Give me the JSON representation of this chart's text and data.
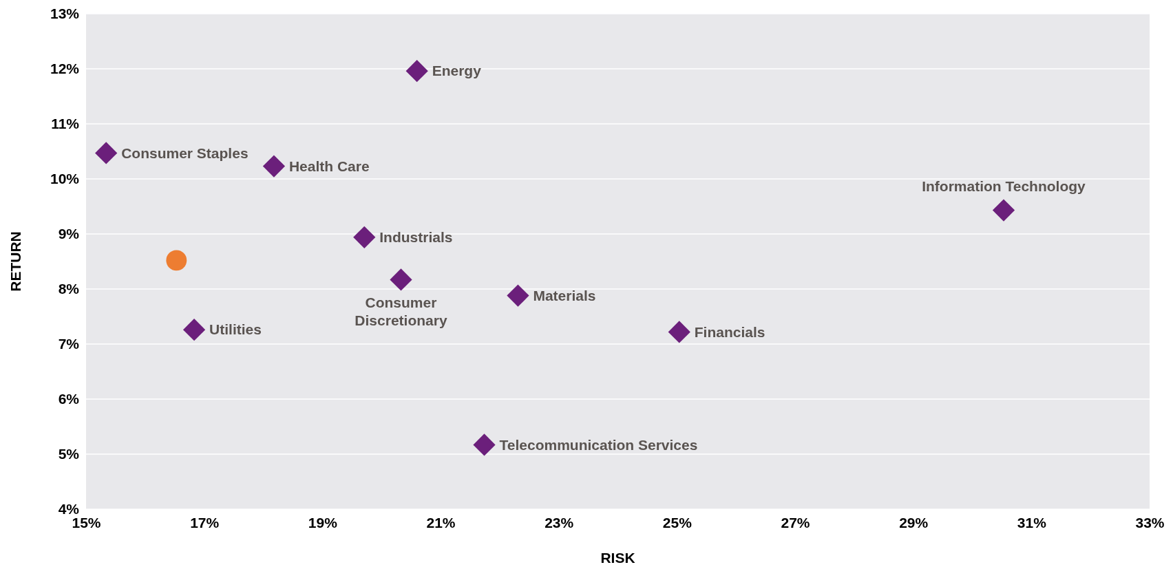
{
  "chart_data": {
    "type": "scatter",
    "xlabel": "RISK",
    "ylabel": "RETURN",
    "xlim": [
      15,
      33
    ],
    "ylim": [
      4,
      13
    ],
    "xticks": [
      {
        "value": 15,
        "label": "15%"
      },
      {
        "value": 17,
        "label": "17%"
      },
      {
        "value": 19,
        "label": "19%"
      },
      {
        "value": 21,
        "label": "21%"
      },
      {
        "value": 23,
        "label": "23%"
      },
      {
        "value": 25,
        "label": "25%"
      },
      {
        "value": 27,
        "label": "27%"
      },
      {
        "value": 29,
        "label": "29%"
      },
      {
        "value": 31,
        "label": "31%"
      },
      {
        "value": 33,
        "label": "33%"
      }
    ],
    "yticks": [
      {
        "value": 4,
        "label": "4%"
      },
      {
        "value": 5,
        "label": "5%"
      },
      {
        "value": 6,
        "label": "6%"
      },
      {
        "value": 7,
        "label": "7%"
      },
      {
        "value": 8,
        "label": "8%"
      },
      {
        "value": 9,
        "label": "9%"
      },
      {
        "value": 10,
        "label": "10%"
      },
      {
        "value": 11,
        "label": "11%"
      },
      {
        "value": 12,
        "label": "12%"
      },
      {
        "value": 13,
        "label": "13%"
      }
    ],
    "grid": "y",
    "series": [
      {
        "color": "#6b1f7b",
        "marker": "diamond",
        "x": [
          15.34,
          16.83,
          18.18,
          19.71,
          20.33,
          20.6,
          21.74,
          22.31,
          25.04,
          30.53
        ],
        "values": [
          10.47,
          7.26,
          10.23,
          8.94,
          8.17,
          11.96,
          5.17,
          7.88,
          7.22,
          9.43
        ]
      },
      {
        "color": "#ed7d31",
        "marker": "circle",
        "x": [
          16.53
        ],
        "values": [
          8.52
        ]
      }
    ],
    "annotations": [
      {
        "text": "Consumer Staples",
        "x": 15.34,
        "y": 10.47
      },
      {
        "text": "Utilities",
        "x": 16.83,
        "y": 7.26
      },
      {
        "text": "Health Care",
        "x": 18.18,
        "y": 10.23
      },
      {
        "text": "Industrials",
        "x": 19.71,
        "y": 8.94
      },
      {
        "text": "Consumer Discretionary",
        "x": 20.33,
        "y": 8.17
      },
      {
        "text": "Energy",
        "x": 20.6,
        "y": 11.96
      },
      {
        "text": "Telecommunication Services",
        "x": 21.74,
        "y": 5.17
      },
      {
        "text": "Materials",
        "x": 22.31,
        "y": 7.88
      },
      {
        "text": "Financials",
        "x": 25.04,
        "y": 7.22
      },
      {
        "text": "Information Technology",
        "x": 30.53,
        "y": 9.43
      }
    ]
  }
}
